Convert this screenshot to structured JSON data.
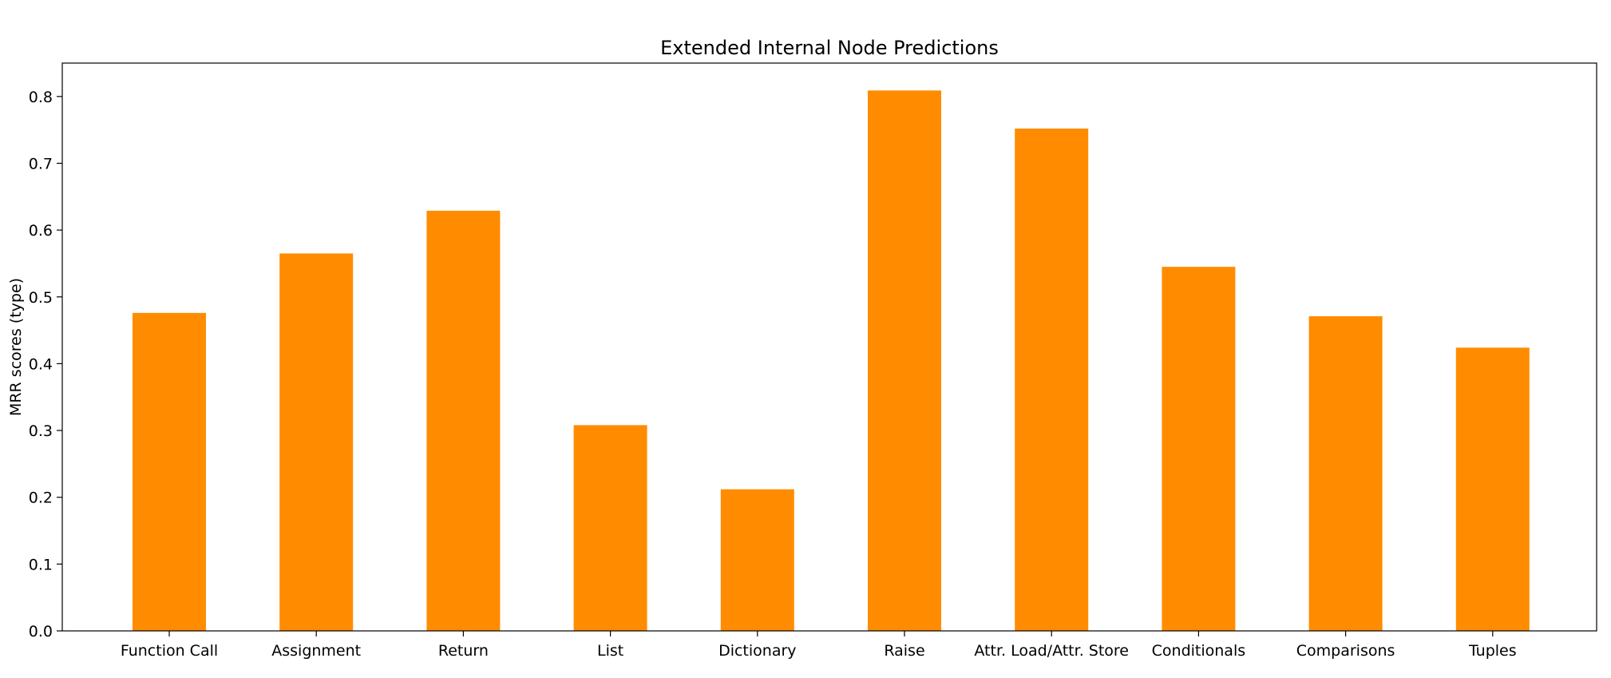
{
  "chart_data": {
    "type": "bar",
    "title": "Extended Internal Node Predictions",
    "xlabel": "",
    "ylabel": "MRR scores (type)",
    "categories": [
      "Function Call",
      "Assignment",
      "Return",
      "List",
      "Dictionary",
      "Raise",
      "Attr. Load/Attr. Store",
      "Conditionals",
      "Comparisons",
      "Tuples"
    ],
    "values": [
      0.476,
      0.565,
      0.629,
      0.308,
      0.212,
      0.809,
      0.752,
      0.545,
      0.471,
      0.424
    ],
    "ylim": [
      0,
      0.85
    ],
    "yticks": [
      "0.0",
      "0.1",
      "0.2",
      "0.3",
      "0.4",
      "0.5",
      "0.6",
      "0.7",
      "0.8"
    ],
    "bar_color": "#ff8c00",
    "grid": false,
    "legend": "none"
  }
}
